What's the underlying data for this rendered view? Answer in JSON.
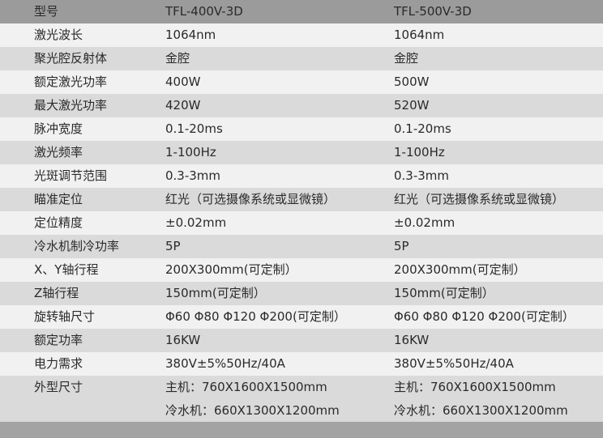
{
  "table": {
    "header": [
      "型号",
      "TFL-400V-3D",
      "TFL-500V-3D"
    ],
    "rows": [
      [
        "激光波长",
        "1064nm",
        "1064nm"
      ],
      [
        "聚光腔反射体",
        "金腔",
        "金腔"
      ],
      [
        "额定激光功率",
        "400W",
        "500W"
      ],
      [
        "最大激光功率",
        "420W",
        "520W"
      ],
      [
        "脉冲宽度",
        "0.1-20ms",
        "0.1-20ms"
      ],
      [
        "激光频率",
        "1-100Hz",
        "1-100Hz"
      ],
      [
        "光斑调节范围",
        "0.3-3mm",
        "0.3-3mm"
      ],
      [
        "瞄准定位",
        "红光（可选摄像系统或显微镜）",
        "红光（可选摄像系统或显微镜）"
      ],
      [
        "定位精度",
        "±0.02mm",
        "±0.02mm"
      ],
      [
        "冷水机制冷功率",
        "5P",
        "5P"
      ],
      [
        "X、Y轴行程",
        "200X300mm(可定制）",
        "200X300mm(可定制）"
      ],
      [
        "Z轴行程",
        "150mm(可定制）",
        "150mm(可定制）"
      ],
      [
        "旋转轴尺寸",
        "Φ60 Φ80 Φ120 Φ200(可定制）",
        "Φ60 Φ80 Φ120 Φ200(可定制）"
      ],
      [
        "额定功率",
        "16KW",
        "16KW"
      ],
      [
        "电力需求",
        "380V±5%50Hz/40A",
        "380V±5%50Hz/40A"
      ],
      [
        "外型尺寸",
        [
          "主机：760X1600X1500mm",
          "冷水机：660X1300X1200mm"
        ],
        [
          "主机：760X1600X1500mm",
          "冷水机：660X1300X1200mm"
        ]
      ]
    ]
  }
}
